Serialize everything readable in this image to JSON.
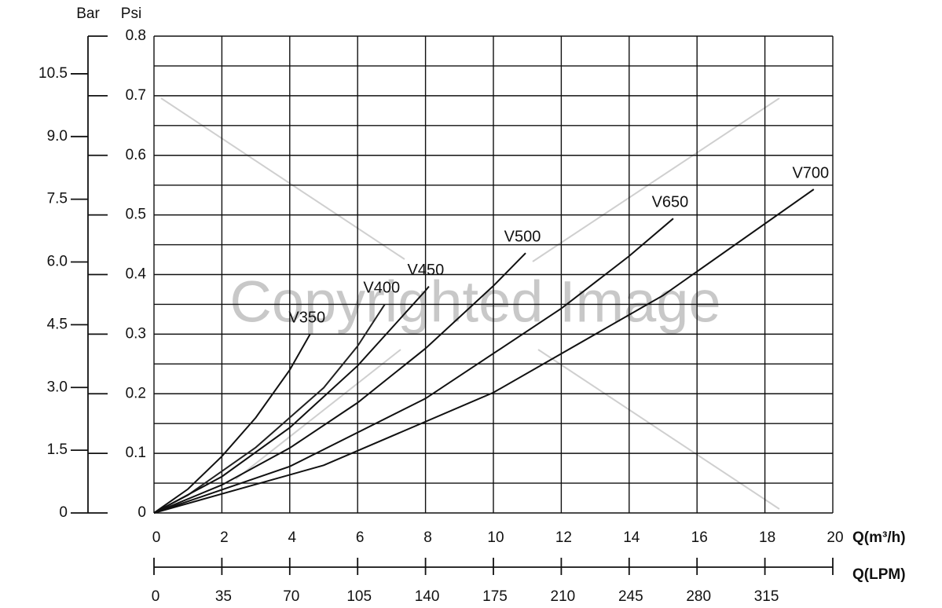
{
  "chart_data": {
    "type": "line",
    "y_label": "Psi",
    "y2_label": "Bar",
    "x_label": "Q(m³/h)",
    "x2_label": "Q(LPM)",
    "watermark": "Copyrighted Image",
    "xlim": [
      0,
      20
    ],
    "xticks": [
      0,
      2,
      4,
      6,
      8,
      10,
      12,
      14,
      16,
      18,
      20
    ],
    "x2lim": [
      0,
      350
    ],
    "x2ticks": [
      0,
      35,
      70,
      105,
      140,
      175,
      210,
      245,
      280,
      315
    ],
    "ylim": [
      0,
      0.8
    ],
    "yticks": [
      0,
      0.1,
      0.2,
      0.3,
      0.4,
      0.5,
      0.6,
      0.7,
      0.8
    ],
    "y_minor_ticks": [
      0.05,
      0.15,
      0.25,
      0.35,
      0.45,
      0.55,
      0.65,
      0.75
    ],
    "y2lim": [
      0,
      11.4
    ],
    "y2ticks": [
      {
        "value": 0,
        "label": "0"
      },
      1.5,
      {
        "value": 3,
        "label": "3.0"
      },
      4.5,
      {
        "value": 6,
        "label": "6.0"
      },
      7.5,
      {
        "value": 9,
        "label": "9.0"
      },
      10.5
    ],
    "grid": true,
    "series": [
      {
        "name": "V350",
        "color": "#111111",
        "x": [
          0,
          1,
          2,
          3,
          4,
          4.6
        ],
        "values": [
          0,
          0.04,
          0.095,
          0.16,
          0.24,
          0.3
        ]
      },
      {
        "name": "V400",
        "color": "#222222",
        "x": [
          0,
          1,
          2,
          3,
          4,
          5,
          6,
          6.8
        ],
        "values": [
          0,
          0.03,
          0.07,
          0.11,
          0.16,
          0.21,
          0.28,
          0.35
        ]
      },
      {
        "name": "V450",
        "color": "#111111",
        "x": [
          0,
          2,
          4,
          6,
          8,
          8.1
        ],
        "values": [
          0,
          0.061,
          0.143,
          0.247,
          0.373,
          0.38
        ]
      },
      {
        "name": "V500",
        "color": "#111111",
        "x": [
          0,
          2,
          4,
          6,
          8,
          10,
          10.95
        ],
        "values": [
          0,
          0.047,
          0.109,
          0.185,
          0.276,
          0.381,
          0.436
        ]
      },
      {
        "name": "V650",
        "color": "#111111",
        "x": [
          0,
          4,
          8,
          12,
          14,
          15.3
        ],
        "values": [
          0,
          0.078,
          0.192,
          0.343,
          0.431,
          0.494
        ]
      },
      {
        "name": "V700",
        "color": "#111111",
        "x": [
          0,
          5,
          10,
          15,
          19.44
        ],
        "values": [
          0,
          0.08,
          0.202,
          0.365,
          0.543
        ]
      }
    ]
  }
}
